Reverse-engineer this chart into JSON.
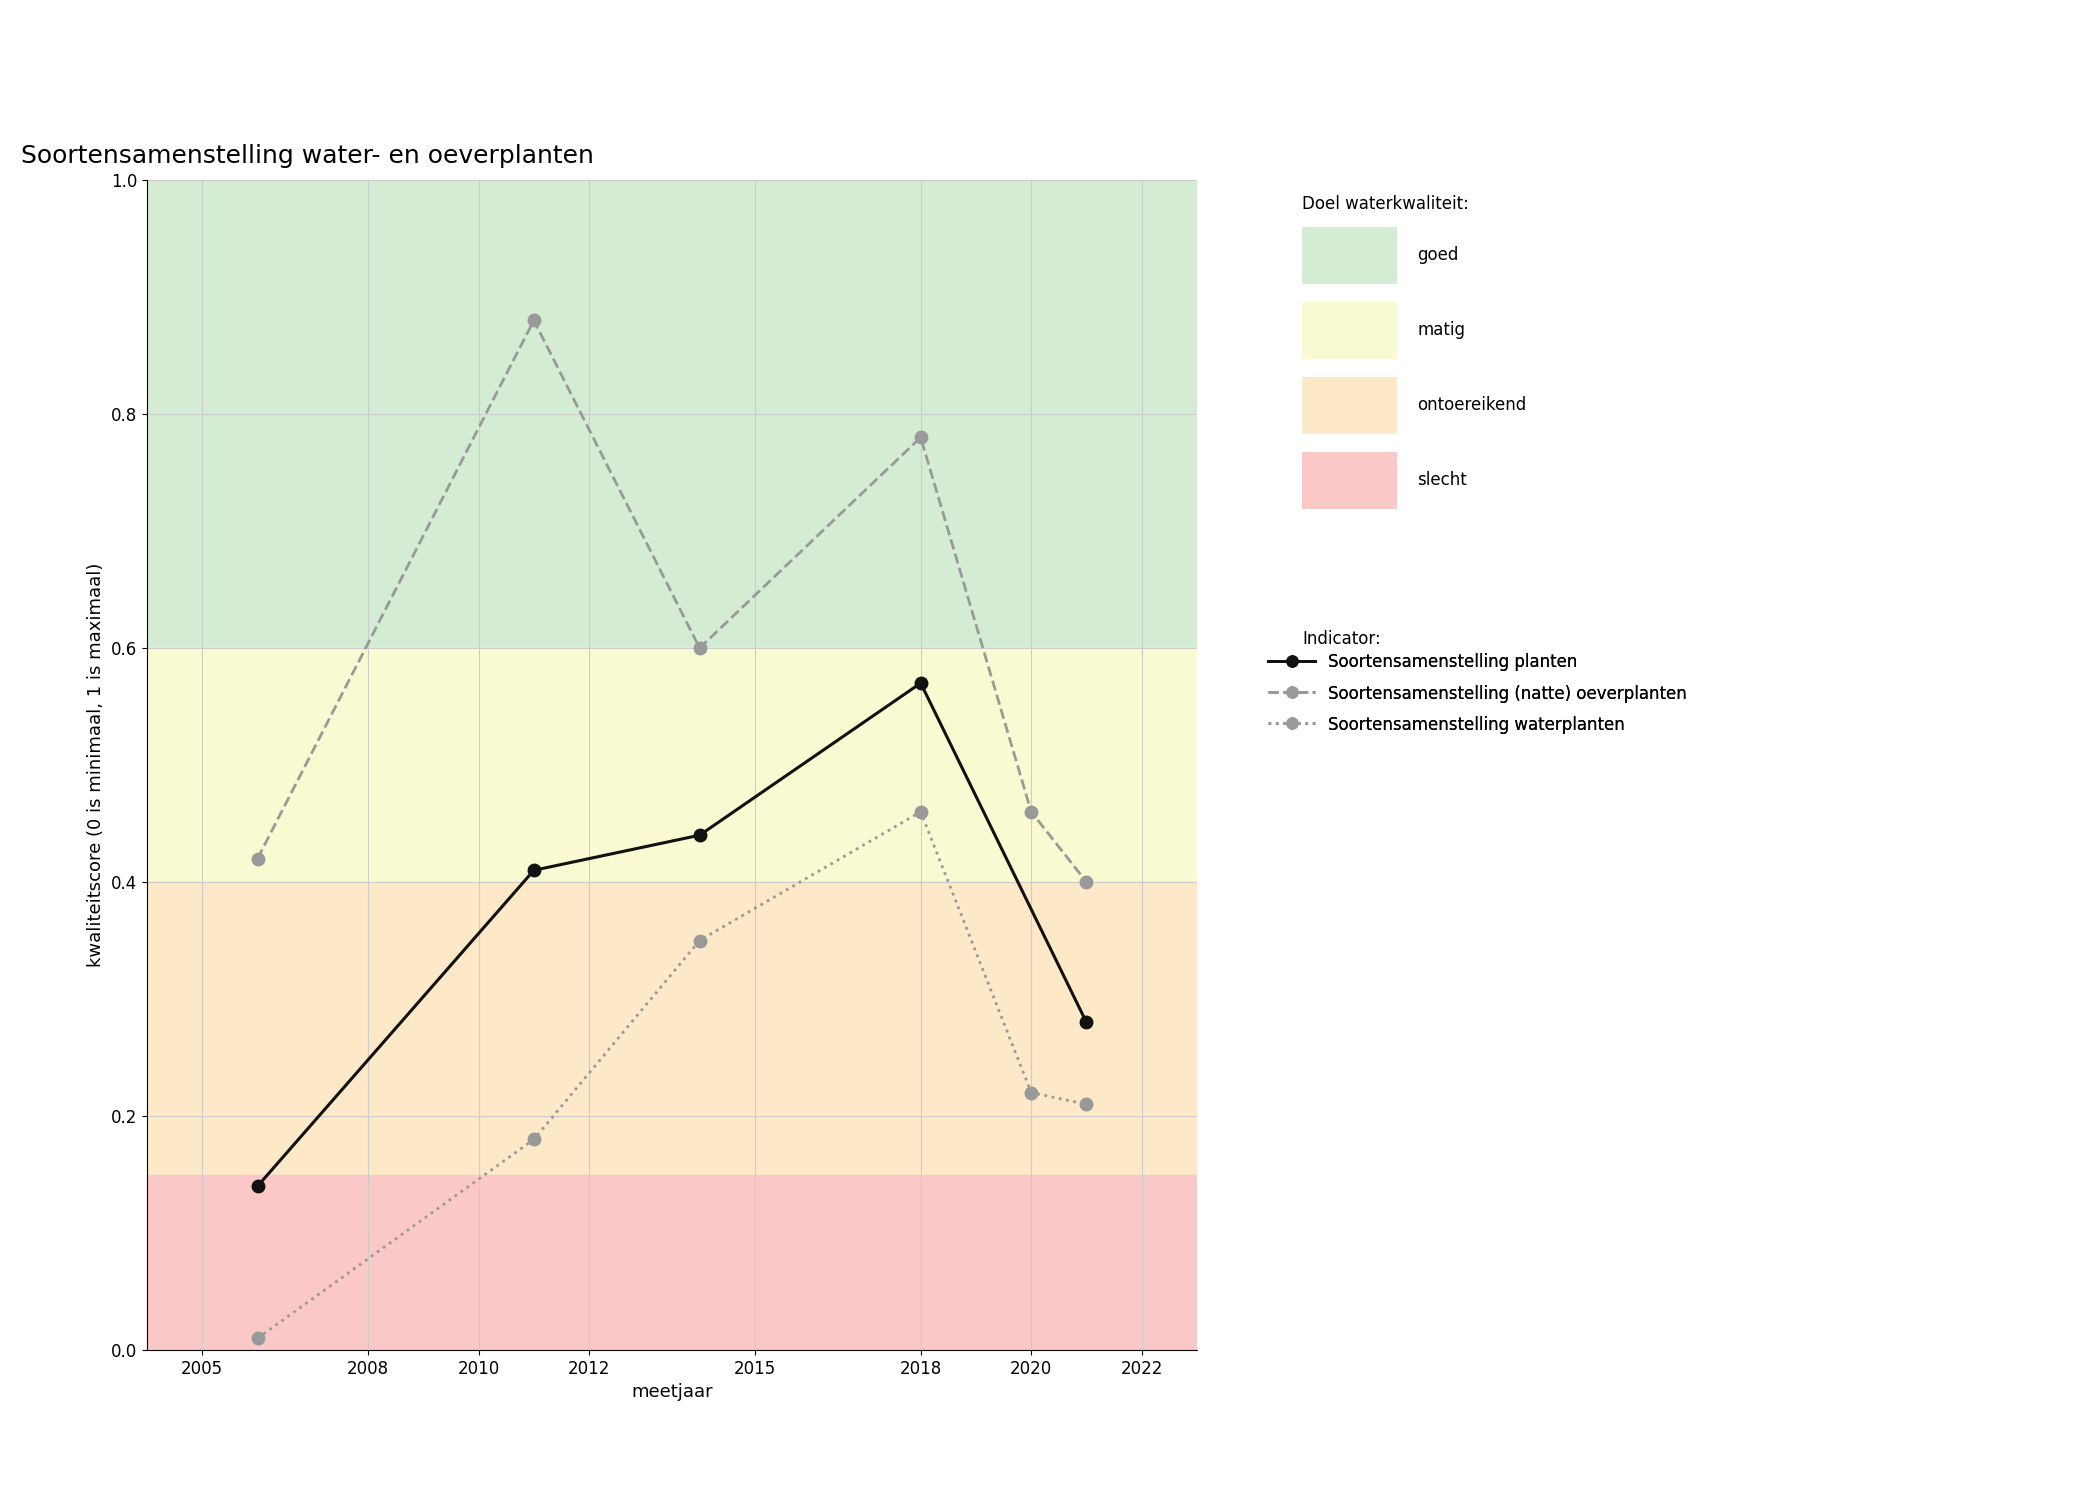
{
  "title": "Soortensamenstelling water- en oeverplanten",
  "xlabel": "meetjaar",
  "ylabel": "kwaliteitscore (0 is minimaal, 1 is maximaal)",
  "xlim": [
    2004,
    2023
  ],
  "ylim": [
    0.0,
    1.0
  ],
  "xticks": [
    2005,
    2008,
    2010,
    2012,
    2015,
    2018,
    2020,
    2022
  ],
  "yticks": [
    0.0,
    0.2,
    0.4,
    0.6,
    0.8,
    1.0
  ],
  "bg_colors": [
    {
      "key": "goed",
      "ymin": 0.6,
      "ymax": 1.0,
      "color": "#d5ecd4"
    },
    {
      "key": "matig",
      "ymin": 0.4,
      "ymax": 0.6,
      "color": "#fafad2"
    },
    {
      "key": "ontoereikend",
      "ymin": 0.15,
      "ymax": 0.4,
      "color": "#fde8c8"
    },
    {
      "key": "slecht",
      "ymin": 0.0,
      "ymax": 0.15,
      "color": "#fbc8c8"
    }
  ],
  "line_planten": {
    "x": [
      2006,
      2011,
      2014,
      2018,
      2021
    ],
    "y": [
      0.14,
      0.41,
      0.44,
      0.57,
      0.28
    ],
    "color": "#111111",
    "linestyle": "solid",
    "linewidth": 2.2,
    "markersize": 9,
    "label": "Soortensamenstelling planten"
  },
  "line_oeverplanten": {
    "x": [
      2006,
      2011,
      2014,
      2018,
      2020,
      2021
    ],
    "y": [
      0.42,
      0.88,
      0.6,
      0.78,
      0.46,
      0.4
    ],
    "color": "#999999",
    "linestyle": "dashed",
    "linewidth": 2.0,
    "markersize": 9,
    "label": "Soortensamenstelling (natte) oeverplanten"
  },
  "line_waterplanten": {
    "x": [
      2006,
      2011,
      2014,
      2018,
      2020,
      2021
    ],
    "y": [
      0.01,
      0.18,
      0.35,
      0.46,
      0.22,
      0.21
    ],
    "color": "#999999",
    "linestyle": "dotted",
    "linewidth": 2.0,
    "markersize": 9,
    "label": "Soortensamenstelling waterplanten"
  },
  "legend_quality_title": "Doel waterkwaliteit:",
  "legend_quality_labels": [
    "goed",
    "matig",
    "ontoereikend",
    "slecht"
  ],
  "legend_quality_colors": [
    "#d5ecd4",
    "#fafad2",
    "#fde8c8",
    "#fbc8c8"
  ],
  "legend_indicator_title": "Indicator:",
  "background_color": "#ffffff",
  "title_fontsize": 18,
  "label_fontsize": 13,
  "tick_fontsize": 12,
  "legend_fontsize": 12
}
